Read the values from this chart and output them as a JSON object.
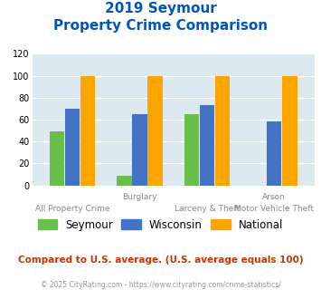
{
  "title_line1": "2019 Seymour",
  "title_line2": "Property Crime Comparison",
  "cat_labels_top": [
    "",
    "Burglary",
    "",
    "Arson"
  ],
  "cat_labels_bot": [
    "All Property Crime",
    "",
    "Larceny & Theft",
    "Motor Vehicle Theft"
  ],
  "seymour": [
    49,
    9,
    65,
    0
  ],
  "wisconsin": [
    70,
    65,
    73,
    58
  ],
  "national": [
    100,
    100,
    100,
    100
  ],
  "seymour_color": "#6abf4b",
  "wisconsin_color": "#4472c4",
  "national_color": "#ffa500",
  "bg_color": "#dce9f0",
  "title_color": "#0055bb",
  "ylim": [
    0,
    120
  ],
  "yticks": [
    0,
    20,
    40,
    60,
    80,
    100,
    120
  ],
  "label_color": "#888888",
  "footnote1": "Compared to U.S. average. (U.S. average equals 100)",
  "footnote2": "© 2025 CityRating.com - https://www.cityrating.com/crime-statistics/",
  "footnote1_color": "#cc3300",
  "footnote2_color": "#999999",
  "legend_labels": [
    "Seymour",
    "Wisconsin",
    "National"
  ]
}
